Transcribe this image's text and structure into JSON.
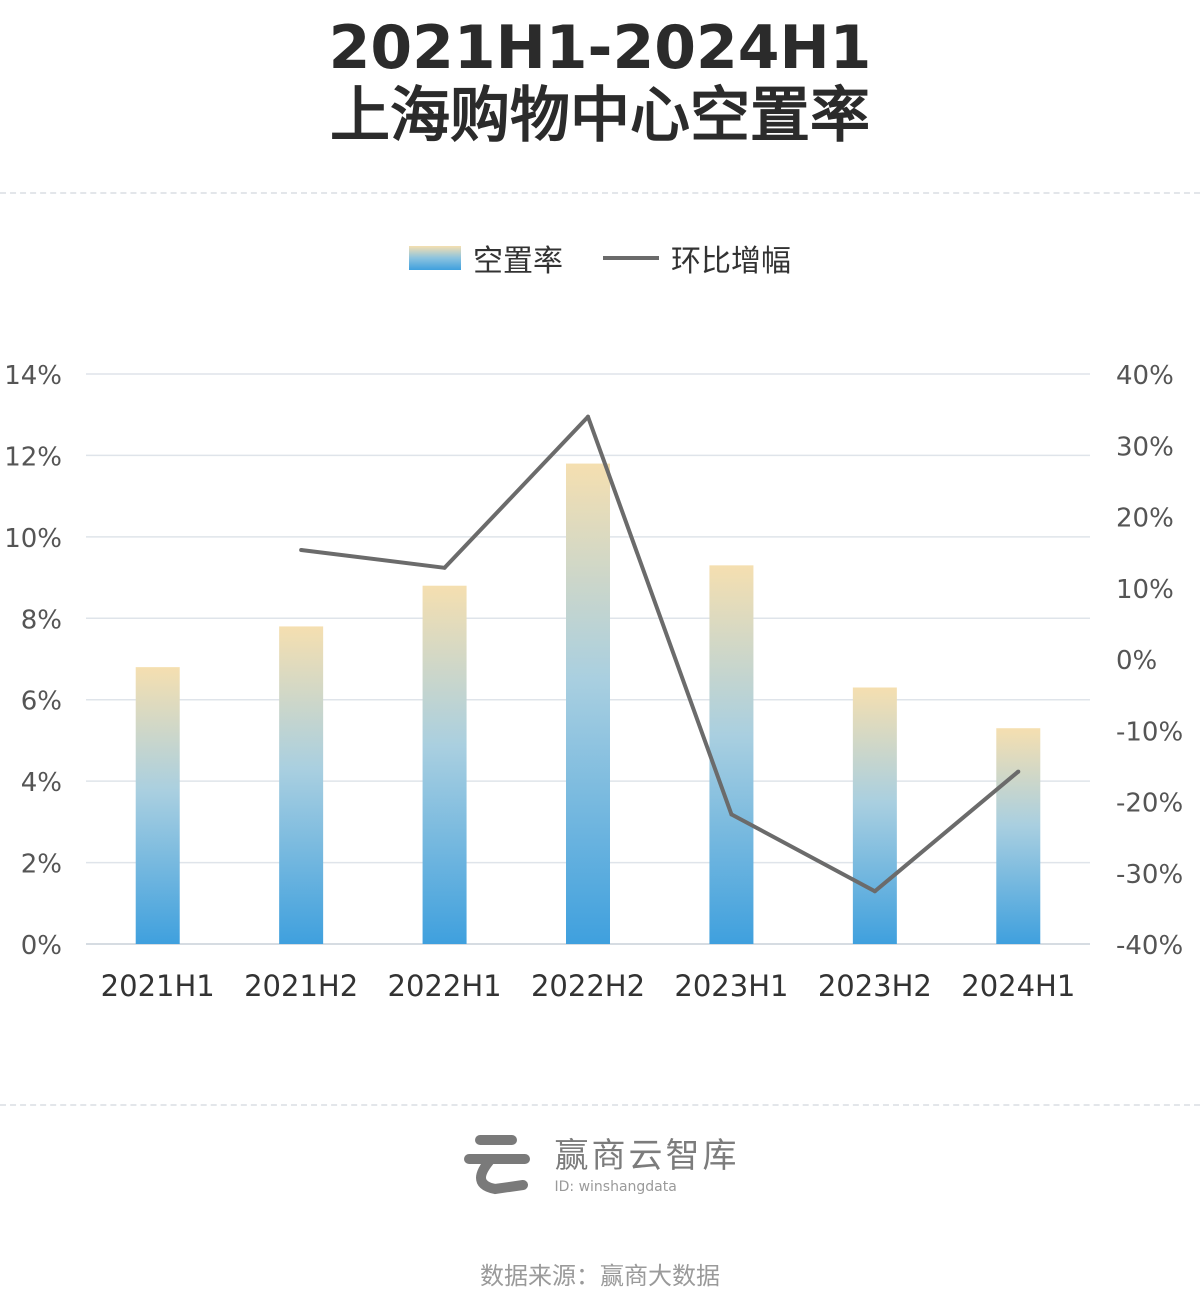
{
  "header": {
    "title_line1": "2021H1-2024H1",
    "title_line2": "上海购物中心空置率"
  },
  "legend": {
    "bar_label": "空置率",
    "line_label": "环比增幅"
  },
  "chart_data": {
    "type": "bar",
    "categories": [
      "2021H1",
      "2021H2",
      "2022H1",
      "2022H2",
      "2023H1",
      "2023H2",
      "2024H1"
    ],
    "series": [
      {
        "name": "空置率",
        "type": "bar",
        "axis": "left",
        "values": [
          6.8,
          7.8,
          8.8,
          11.8,
          9.3,
          6.3,
          5.3
        ]
      },
      {
        "name": "环比增幅",
        "type": "line",
        "axis": "right",
        "values": [
          null,
          15.3,
          12.8,
          34.0,
          -21.8,
          -32.6,
          -15.8
        ]
      }
    ],
    "ylim_left": [
      0,
      14
    ],
    "yticks_left": [
      "0%",
      "2%",
      "4%",
      "6%",
      "8%",
      "10%",
      "12%",
      "14%"
    ],
    "ylim_right": [
      -40,
      40
    ],
    "yticks_right": [
      "-40%",
      "-30%",
      "-20%",
      "-10%",
      "0%",
      "10%",
      "20%",
      "30%",
      "40%"
    ],
    "grid": true,
    "legend_position": "top-center",
    "colors": {
      "bar_top": "#f5dfb0",
      "bar_bottom": "#3fa0de",
      "line": "#6b6b6b",
      "grid": "#dfe4ea"
    }
  },
  "footer": {
    "logo_name": "赢商云智库",
    "logo_id": "ID: winshangdata",
    "source": "数据来源：赢商大数据"
  }
}
